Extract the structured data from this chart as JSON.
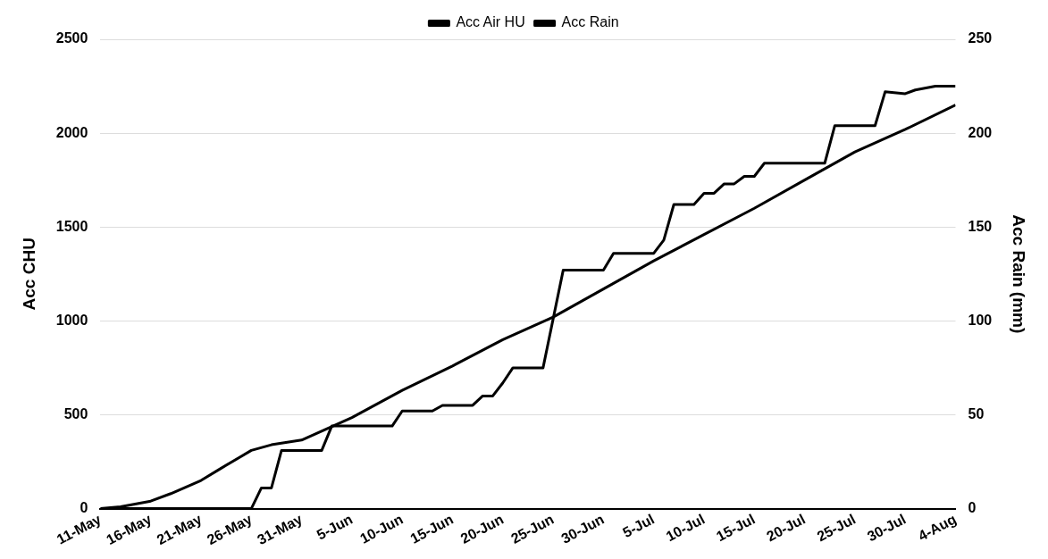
{
  "chart_data": {
    "type": "line",
    "ylabel": "Acc CHU",
    "y2label": "Acc Rain (mm)",
    "legend": "top",
    "grid": "y",
    "marker": "none",
    "xlim": [
      "--05-11",
      "--08-04"
    ],
    "xticks": [
      {
        "value": "--05-11",
        "label": "11-May"
      },
      {
        "value": "--05-16",
        "label": "16-May"
      },
      {
        "value": "--05-21",
        "label": "21-May"
      },
      {
        "value": "--05-26",
        "label": "26-May"
      },
      {
        "value": "--05-31",
        "label": "31-May"
      },
      {
        "value": "--06-05",
        "label": "5-Jun"
      },
      {
        "value": "--06-10",
        "label": "10-Jun"
      },
      {
        "value": "--06-15",
        "label": "15-Jun"
      },
      {
        "value": "--06-20",
        "label": "20-Jun"
      },
      {
        "value": "--06-25",
        "label": "25-Jun"
      },
      {
        "value": "--06-30",
        "label": "30-Jun"
      },
      {
        "value": "--07-05",
        "label": "5-Jul"
      },
      {
        "value": "--07-10",
        "label": "10-Jul"
      },
      {
        "value": "--07-15",
        "label": "15-Jul"
      },
      {
        "value": "--07-20",
        "label": "20-Jul"
      },
      {
        "value": "--07-25",
        "label": "25-Jul"
      },
      {
        "value": "--07-30",
        "label": "30-Jul"
      },
      {
        "value": "--08-04",
        "label": "4-Aug"
      }
    ],
    "ylim": [
      0,
      2500
    ],
    "yticks": [
      0,
      500,
      1000,
      1500,
      2000,
      2500
    ],
    "y2lim": [
      0,
      250
    ],
    "y2ticks": [
      0,
      50,
      100,
      150,
      200,
      250
    ],
    "series": [
      {
        "name": "Acc Air HU",
        "color": "#000000",
        "x": [
          "--05-11",
          "--05-13",
          "--05-16",
          "--05-18",
          "--05-21",
          "--05-23",
          "--05-26",
          "--05-28",
          "--05-31",
          "--06-05",
          "--06-10",
          "--06-15",
          "--06-20",
          "--06-25",
          "--06-30",
          "--07-05",
          "--07-10",
          "--07-15",
          "--07-20",
          "--07-25",
          "--07-30",
          "--08-04"
        ],
        "values": [
          0,
          10,
          40,
          80,
          150,
          215,
          310,
          340,
          365,
          485,
          630,
          760,
          900,
          1020,
          1170,
          1320,
          1460,
          1600,
          1750,
          1900,
          2020,
          2150
        ]
      },
      {
        "name": "Acc Rain",
        "color": "#000000",
        "axis": "y2",
        "x": [
          "--05-11",
          "--05-26",
          "--05-27",
          "--05-28",
          "--05-29",
          "--06-02",
          "--06-03",
          "--06-09",
          "--06-10",
          "--06-13",
          "--06-14",
          "--06-17",
          "--06-18",
          "--06-19",
          "--06-20",
          "--06-21",
          "--06-24",
          "--06-26",
          "--06-30",
          "--07-01",
          "--07-05",
          "--07-06",
          "--07-07",
          "--07-09",
          "--07-10",
          "--07-11",
          "--07-12",
          "--07-13",
          "--07-14",
          "--07-15",
          "--07-16",
          "--07-22",
          "--07-23",
          "--07-27",
          "--07-28",
          "--07-30",
          "--07-31",
          "--08-02",
          "--08-04"
        ],
        "values": [
          0,
          0,
          11,
          11,
          31,
          31,
          44,
          44,
          52,
          52,
          55,
          55,
          60,
          60,
          67,
          75,
          75,
          127,
          127,
          136,
          136,
          143,
          162,
          162,
          168,
          168,
          173,
          173,
          177,
          177,
          184,
          184,
          204,
          204,
          222,
          221,
          223,
          225,
          225
        ]
      }
    ]
  }
}
